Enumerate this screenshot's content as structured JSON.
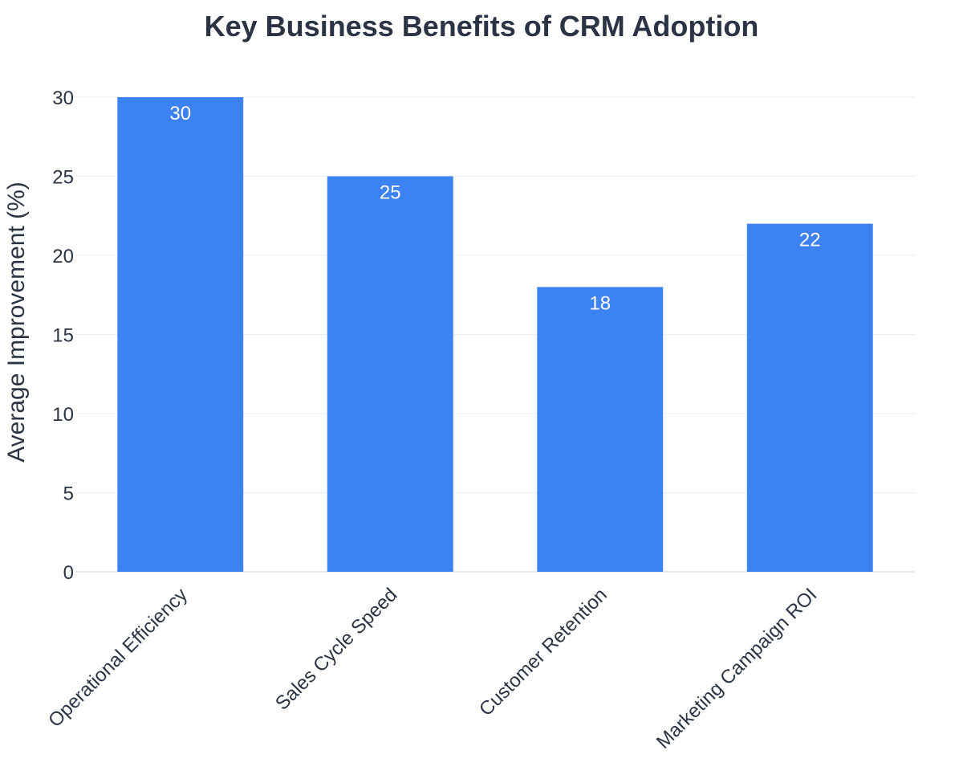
{
  "chart_data": {
    "type": "bar",
    "title": "Key Business Benefits of CRM Adoption",
    "xlabel": "",
    "ylabel": "Average Improvement (%)",
    "categories": [
      "Operational Efficiency",
      "Sales Cycle Speed",
      "Customer Retention",
      "Marketing Campaign ROI"
    ],
    "values": [
      30,
      25,
      18,
      22
    ],
    "data_labels": [
      "30",
      "25",
      "18",
      "22"
    ],
    "ylim": [
      0,
      30
    ],
    "yticks": [
      0,
      5,
      10,
      15,
      20,
      25,
      30
    ],
    "ytick_labels": [
      "0",
      "5",
      "10",
      "15",
      "20",
      "25",
      "30"
    ],
    "grid": true,
    "bar_color": "#3d82f3",
    "label_color": "#ffffff"
  }
}
